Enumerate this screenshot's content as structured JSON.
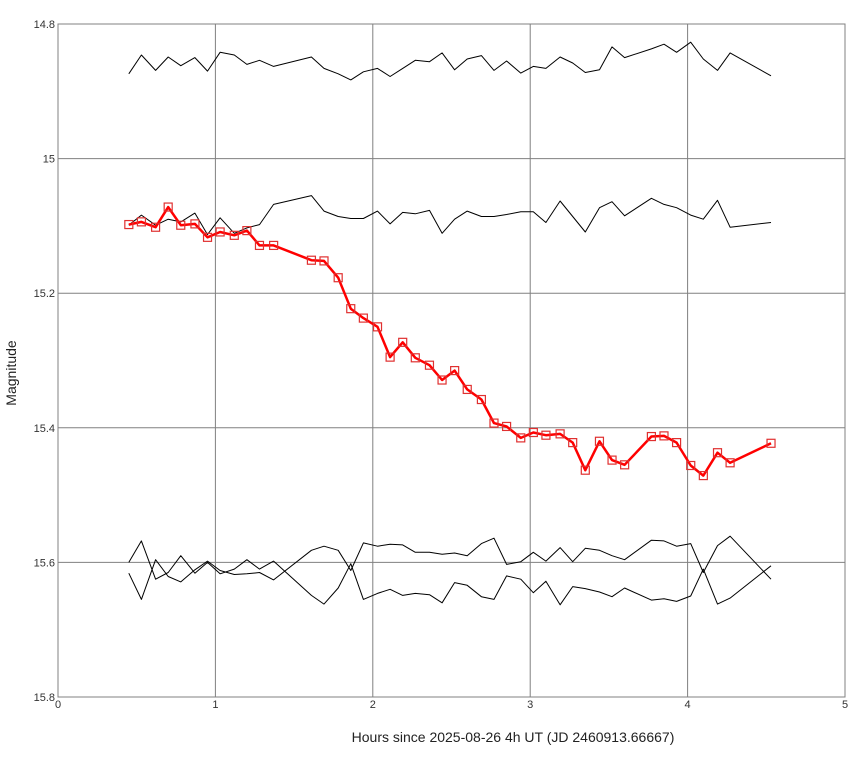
{
  "chart_data": {
    "type": "line",
    "xlabel": "Hours since 2025-08-26 4h UT (JD 2460913.66667)",
    "ylabel": "Magnitude",
    "xlim": [
      0,
      5
    ],
    "ylim": [
      14.8,
      15.8
    ],
    "y_inverted": true,
    "xticks": [
      0,
      1,
      2,
      3,
      4,
      5
    ],
    "yticks": [
      14.8,
      15,
      15.2,
      15.4,
      15.6,
      15.8
    ],
    "xtick_labels": [
      "0",
      "1",
      "2",
      "3",
      "4",
      "5"
    ],
    "ytick_labels": [
      "14.8",
      "15",
      "15.2",
      "15.4",
      "15.6",
      "15.8"
    ],
    "grid": true,
    "colors": {
      "target": "#ff0000",
      "marker": "#e03030",
      "comparison": "#000000",
      "grid": "#808080"
    },
    "series": [
      {
        "role": "target",
        "marker": "square",
        "points": [
          [
            0.45,
            15.098
          ],
          [
            0.53,
            15.094
          ],
          [
            0.62,
            15.102
          ],
          [
            0.7,
            15.072
          ],
          [
            0.78,
            15.099
          ],
          [
            0.87,
            15.097
          ],
          [
            0.95,
            15.117
          ],
          [
            1.03,
            15.109
          ],
          [
            1.12,
            15.114
          ],
          [
            1.2,
            15.107
          ],
          [
            1.28,
            15.129
          ],
          [
            1.37,
            15.129
          ],
          [
            1.61,
            15.151
          ],
          [
            1.69,
            15.152
          ],
          [
            1.78,
            15.177
          ],
          [
            1.86,
            15.223
          ],
          [
            1.94,
            15.237
          ],
          [
            2.03,
            15.25
          ],
          [
            2.11,
            15.295
          ],
          [
            2.19,
            15.273
          ],
          [
            2.27,
            15.296
          ],
          [
            2.36,
            15.307
          ],
          [
            2.44,
            15.329
          ],
          [
            2.52,
            15.315
          ],
          [
            2.6,
            15.343
          ],
          [
            2.69,
            15.358
          ],
          [
            2.77,
            15.393
          ],
          [
            2.85,
            15.398
          ],
          [
            2.94,
            15.415
          ],
          [
            3.02,
            15.407
          ],
          [
            3.1,
            15.411
          ],
          [
            3.19,
            15.409
          ],
          [
            3.27,
            15.422
          ],
          [
            3.35,
            15.463
          ],
          [
            3.44,
            15.42
          ],
          [
            3.52,
            15.448
          ],
          [
            3.6,
            15.455
          ],
          [
            3.77,
            15.413
          ],
          [
            3.85,
            15.412
          ],
          [
            3.93,
            15.422
          ],
          [
            4.02,
            15.456
          ],
          [
            4.1,
            15.471
          ],
          [
            4.19,
            15.437
          ],
          [
            4.27,
            15.452
          ],
          [
            4.53,
            15.423
          ]
        ]
      },
      {
        "role": "comparison",
        "points": [
          [
            0.45,
            14.874
          ],
          [
            0.53,
            14.846
          ],
          [
            0.62,
            14.869
          ],
          [
            0.7,
            14.849
          ],
          [
            0.78,
            14.862
          ],
          [
            0.87,
            14.85
          ],
          [
            0.95,
            14.87
          ],
          [
            1.03,
            14.842
          ],
          [
            1.12,
            14.846
          ],
          [
            1.2,
            14.86
          ],
          [
            1.28,
            14.854
          ],
          [
            1.37,
            14.863
          ],
          [
            1.61,
            14.849
          ],
          [
            1.69,
            14.866
          ],
          [
            1.78,
            14.874
          ],
          [
            1.86,
            14.883
          ],
          [
            1.94,
            14.871
          ],
          [
            2.03,
            14.866
          ],
          [
            2.11,
            14.878
          ],
          [
            2.19,
            14.866
          ],
          [
            2.27,
            14.854
          ],
          [
            2.36,
            14.856
          ],
          [
            2.44,
            14.843
          ],
          [
            2.52,
            14.868
          ],
          [
            2.6,
            14.852
          ],
          [
            2.69,
            14.847
          ],
          [
            2.77,
            14.869
          ],
          [
            2.85,
            14.855
          ],
          [
            2.94,
            14.873
          ],
          [
            3.02,
            14.863
          ],
          [
            3.1,
            14.866
          ],
          [
            3.19,
            14.849
          ],
          [
            3.27,
            14.858
          ],
          [
            3.35,
            14.872
          ],
          [
            3.44,
            14.868
          ],
          [
            3.52,
            14.834
          ],
          [
            3.6,
            14.85
          ],
          [
            3.77,
            14.837
          ],
          [
            3.85,
            14.83
          ],
          [
            3.93,
            14.842
          ],
          [
            4.02,
            14.827
          ],
          [
            4.1,
            14.852
          ],
          [
            4.19,
            14.869
          ],
          [
            4.27,
            14.843
          ],
          [
            4.53,
            14.877
          ]
        ]
      },
      {
        "role": "comparison",
        "points": [
          [
            0.45,
            15.099
          ],
          [
            0.53,
            15.084
          ],
          [
            0.62,
            15.099
          ],
          [
            0.7,
            15.09
          ],
          [
            0.78,
            15.094
          ],
          [
            0.87,
            15.081
          ],
          [
            0.95,
            15.113
          ],
          [
            1.03,
            15.088
          ],
          [
            1.12,
            15.111
          ],
          [
            1.2,
            15.103
          ],
          [
            1.28,
            15.098
          ],
          [
            1.37,
            15.068
          ],
          [
            1.61,
            15.055
          ],
          [
            1.69,
            15.078
          ],
          [
            1.78,
            15.086
          ],
          [
            1.86,
            15.089
          ],
          [
            1.94,
            15.089
          ],
          [
            2.03,
            15.078
          ],
          [
            2.11,
            15.097
          ],
          [
            2.19,
            15.08
          ],
          [
            2.27,
            15.082
          ],
          [
            2.36,
            15.077
          ],
          [
            2.44,
            15.111
          ],
          [
            2.52,
            15.09
          ],
          [
            2.6,
            15.078
          ],
          [
            2.69,
            15.086
          ],
          [
            2.77,
            15.086
          ],
          [
            2.85,
            15.083
          ],
          [
            2.94,
            15.079
          ],
          [
            3.02,
            15.079
          ],
          [
            3.1,
            15.095
          ],
          [
            3.19,
            15.063
          ],
          [
            3.27,
            15.086
          ],
          [
            3.35,
            15.109
          ],
          [
            3.44,
            15.073
          ],
          [
            3.52,
            15.064
          ],
          [
            3.6,
            15.085
          ],
          [
            3.77,
            15.059
          ],
          [
            3.85,
            15.068
          ],
          [
            3.93,
            15.073
          ],
          [
            4.02,
            15.084
          ],
          [
            4.1,
            15.09
          ],
          [
            4.19,
            15.062
          ],
          [
            4.27,
            15.102
          ],
          [
            4.53,
            15.095
          ]
        ]
      },
      {
        "role": "comparison",
        "points": [
          [
            0.45,
            15.6
          ],
          [
            0.53,
            15.568
          ],
          [
            0.62,
            15.625
          ],
          [
            0.7,
            15.615
          ],
          [
            0.78,
            15.59
          ],
          [
            0.87,
            15.616
          ],
          [
            0.95,
            15.6
          ],
          [
            1.03,
            15.617
          ],
          [
            1.12,
            15.61
          ],
          [
            1.2,
            15.596
          ],
          [
            1.28,
            15.61
          ],
          [
            1.37,
            15.598
          ],
          [
            1.61,
            15.649
          ],
          [
            1.69,
            15.662
          ],
          [
            1.78,
            15.638
          ],
          [
            1.86,
            15.602
          ],
          [
            1.94,
            15.655
          ],
          [
            2.03,
            15.646
          ],
          [
            2.11,
            15.64
          ],
          [
            2.19,
            15.649
          ],
          [
            2.27,
            15.646
          ],
          [
            2.36,
            15.648
          ],
          [
            2.44,
            15.66
          ],
          [
            2.52,
            15.63
          ],
          [
            2.6,
            15.634
          ],
          [
            2.69,
            15.651
          ],
          [
            2.77,
            15.655
          ],
          [
            2.85,
            15.62
          ],
          [
            2.94,
            15.625
          ],
          [
            3.02,
            15.645
          ],
          [
            3.1,
            15.628
          ],
          [
            3.19,
            15.663
          ],
          [
            3.27,
            15.636
          ],
          [
            3.35,
            15.639
          ],
          [
            3.44,
            15.644
          ],
          [
            3.52,
            15.651
          ],
          [
            3.6,
            15.638
          ],
          [
            3.77,
            15.656
          ],
          [
            3.85,
            15.654
          ],
          [
            3.93,
            15.658
          ],
          [
            4.02,
            15.65
          ],
          [
            4.1,
            15.61
          ],
          [
            4.19,
            15.662
          ],
          [
            4.27,
            15.653
          ],
          [
            4.53,
            15.605
          ]
        ]
      },
      {
        "role": "comparison",
        "points": [
          [
            0.45,
            15.616
          ],
          [
            0.53,
            15.655
          ],
          [
            0.62,
            15.596
          ],
          [
            0.7,
            15.621
          ],
          [
            0.78,
            15.629
          ],
          [
            0.87,
            15.611
          ],
          [
            0.95,
            15.598
          ],
          [
            1.03,
            15.612
          ],
          [
            1.12,
            15.618
          ],
          [
            1.2,
            15.617
          ],
          [
            1.28,
            15.615
          ],
          [
            1.37,
            15.626
          ],
          [
            1.61,
            15.582
          ],
          [
            1.69,
            15.576
          ],
          [
            1.78,
            15.582
          ],
          [
            1.86,
            15.612
          ],
          [
            1.94,
            15.571
          ],
          [
            2.03,
            15.576
          ],
          [
            2.11,
            15.573
          ],
          [
            2.19,
            15.574
          ],
          [
            2.27,
            15.585
          ],
          [
            2.36,
            15.585
          ],
          [
            2.44,
            15.588
          ],
          [
            2.52,
            15.586
          ],
          [
            2.6,
            15.59
          ],
          [
            2.69,
            15.572
          ],
          [
            2.77,
            15.564
          ],
          [
            2.85,
            15.603
          ],
          [
            2.94,
            15.599
          ],
          [
            3.02,
            15.585
          ],
          [
            3.1,
            15.598
          ],
          [
            3.19,
            15.578
          ],
          [
            3.27,
            15.599
          ],
          [
            3.35,
            15.579
          ],
          [
            3.44,
            15.582
          ],
          [
            3.52,
            15.59
          ],
          [
            3.6,
            15.596
          ],
          [
            3.77,
            15.567
          ],
          [
            3.85,
            15.568
          ],
          [
            3.93,
            15.576
          ],
          [
            4.02,
            15.572
          ],
          [
            4.1,
            15.615
          ],
          [
            4.19,
            15.575
          ],
          [
            4.27,
            15.561
          ],
          [
            4.53,
            15.625
          ]
        ]
      }
    ]
  }
}
